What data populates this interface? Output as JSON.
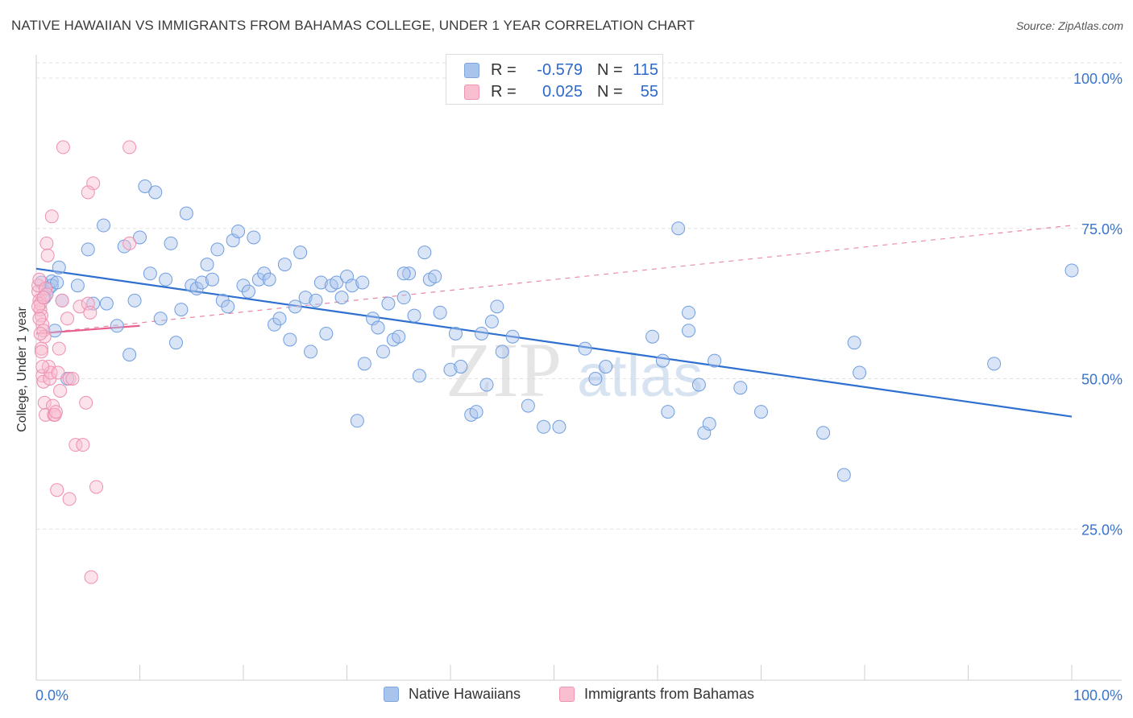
{
  "title": "NATIVE HAWAIIAN VS IMMIGRANTS FROM BAHAMAS COLLEGE, UNDER 1 YEAR CORRELATION CHART",
  "source": "Source: ZipAtlas.com",
  "y_axis_label": "College, Under 1 year",
  "watermark": {
    "zip": "ZIP",
    "atlas": "atlas"
  },
  "legend_stats": [
    {
      "r_label": "R =",
      "r_value": "-0.579",
      "n_label": "N =",
      "n_value": "115",
      "color": "#a9c4ec",
      "border": "#7ea6de"
    },
    {
      "r_label": "R =",
      "r_value": "0.025",
      "n_label": "N =",
      "n_value": "55",
      "color": "#f8bfd0",
      "border": "#ee95b1"
    }
  ],
  "bottom_legend": [
    {
      "label": "Native Hawaiians",
      "color": "#a9c4ec",
      "border": "#7ea6de"
    },
    {
      "label": "Immigrants from Bahamas",
      "color": "#f8bfd0",
      "border": "#ee95b1"
    }
  ],
  "chart_data": {
    "type": "scatter",
    "xlim": [
      0,
      100
    ],
    "ylim": [
      0,
      100
    ],
    "x_tick_labels": [
      "0.0%",
      "100.0%"
    ],
    "y_tick_labels": [
      {
        "value": 100,
        "label": "100.0%"
      },
      {
        "value": 75,
        "label": "75.0%"
      },
      {
        "value": 50,
        "label": "50.0%"
      },
      {
        "value": 25,
        "label": "25.0%"
      }
    ],
    "grid": true,
    "series": [
      {
        "name": "Native Hawaiians",
        "color": "#6f9ee0",
        "fill": "rgba(170,196,236,0.45)",
        "trend": {
          "x": [
            0,
            100
          ],
          "y": [
            68.3,
            43.7
          ],
          "style": "solid",
          "color": "#2e6fcf"
        },
        "points": [
          [
            0.8,
            63.5
          ],
          [
            1.2,
            65.0
          ],
          [
            1.5,
            66.2
          ],
          [
            1.8,
            58.0
          ],
          [
            2.2,
            68.5
          ],
          [
            2.5,
            63.0
          ],
          [
            4.0,
            65.5
          ],
          [
            5.0,
            71.5
          ],
          [
            5.5,
            62.5
          ],
          [
            6.5,
            75.5
          ],
          [
            6.8,
            62.5
          ],
          [
            7.8,
            58.8
          ],
          [
            8.5,
            72.0
          ],
          [
            9.0,
            54.0
          ],
          [
            9.5,
            63.0
          ],
          [
            10.0,
            73.5
          ],
          [
            10.5,
            82.0
          ],
          [
            11.0,
            67.5
          ],
          [
            11.5,
            81.0
          ],
          [
            12.0,
            60.0
          ],
          [
            12.5,
            66.5
          ],
          [
            13.0,
            72.5
          ],
          [
            13.5,
            56.0
          ],
          [
            14.0,
            61.5
          ],
          [
            14.5,
            77.5
          ],
          [
            15.0,
            65.5
          ],
          [
            15.5,
            65.0
          ],
          [
            16.0,
            66.0
          ],
          [
            16.5,
            69.0
          ],
          [
            17.0,
            66.5
          ],
          [
            17.5,
            71.5
          ],
          [
            18.0,
            63.0
          ],
          [
            18.5,
            62.0
          ],
          [
            19.0,
            73.0
          ],
          [
            19.5,
            74.5
          ],
          [
            20.0,
            65.5
          ],
          [
            20.5,
            64.5
          ],
          [
            21.0,
            73.5
          ],
          [
            21.5,
            66.5
          ],
          [
            22.0,
            67.5
          ],
          [
            22.5,
            66.5
          ],
          [
            23.0,
            59.0
          ],
          [
            23.5,
            60.0
          ],
          [
            24.0,
            69.0
          ],
          [
            24.5,
            56.5
          ],
          [
            25.0,
            62.0
          ],
          [
            25.5,
            71.0
          ],
          [
            26.0,
            63.5
          ],
          [
            26.5,
            54.5
          ],
          [
            27.0,
            63.0
          ],
          [
            27.5,
            66.0
          ],
          [
            28.0,
            57.5
          ],
          [
            28.5,
            65.5
          ],
          [
            29.0,
            66.0
          ],
          [
            29.5,
            63.5
          ],
          [
            30.0,
            67.0
          ],
          [
            30.5,
            65.5
          ],
          [
            31.0,
            43.0
          ],
          [
            31.5,
            66.0
          ],
          [
            31.7,
            52.5
          ],
          [
            32.5,
            60.0
          ],
          [
            33.0,
            58.5
          ],
          [
            33.5,
            54.5
          ],
          [
            34.0,
            62.5
          ],
          [
            34.5,
            56.5
          ],
          [
            35.0,
            57.0
          ],
          [
            35.5,
            63.5
          ],
          [
            36.0,
            67.5
          ],
          [
            36.5,
            60.5
          ],
          [
            37.0,
            50.5
          ],
          [
            37.5,
            71.0
          ],
          [
            38.0,
            66.5
          ],
          [
            38.5,
            67.0
          ],
          [
            39.0,
            61.0
          ],
          [
            40.0,
            51.5
          ],
          [
            40.5,
            57.5
          ],
          [
            41.0,
            52.0
          ],
          [
            42.0,
            44.0
          ],
          [
            42.5,
            44.5
          ],
          [
            43.0,
            57.5
          ],
          [
            43.5,
            49.0
          ],
          [
            44.0,
            59.5
          ],
          [
            44.5,
            62.0
          ],
          [
            45.0,
            54.5
          ],
          [
            46.0,
            57.0
          ],
          [
            47.5,
            45.5
          ],
          [
            49.0,
            42.0
          ],
          [
            50.5,
            42.0
          ],
          [
            53.0,
            55.0
          ],
          [
            54.0,
            50.0
          ],
          [
            55.0,
            52.0
          ],
          [
            59.5,
            57.0
          ],
          [
            60.5,
            53.0
          ],
          [
            61.0,
            44.5
          ],
          [
            62.0,
            75.0
          ],
          [
            63.0,
            58.0
          ],
          [
            63.0,
            61.0
          ],
          [
            64.0,
            49.0
          ],
          [
            64.5,
            41.0
          ],
          [
            65.0,
            42.5
          ],
          [
            65.5,
            53.0
          ],
          [
            68.0,
            48.5
          ],
          [
            70.0,
            44.5
          ],
          [
            76.0,
            41.0
          ],
          [
            78.0,
            34.0
          ],
          [
            79.0,
            56.0
          ],
          [
            79.5,
            51.0
          ],
          [
            92.5,
            52.5
          ],
          [
            100,
            68.0
          ],
          [
            0.5,
            66.0
          ],
          [
            1.0,
            64.0
          ],
          [
            3.0,
            50.0
          ],
          [
            1.5,
            65.5
          ],
          [
            2.0,
            66.0
          ],
          [
            35.5,
            67.5
          ]
        ]
      },
      {
        "name": "Immigrants from Bahamas",
        "color": "#ee8fb0",
        "fill": "rgba(248,191,208,0.45)",
        "trend_solid": {
          "x": [
            0,
            10
          ],
          "y": [
            57.5,
            58.8
          ],
          "color": "#e85f8f"
        },
        "trend": {
          "x": [
            0,
            100
          ],
          "y": [
            57.5,
            75.5
          ],
          "style": "dashed",
          "color": "#e88aa9"
        },
        "points": [
          [
            0.2,
            64.5
          ],
          [
            0.3,
            63.0
          ],
          [
            0.4,
            61.5
          ],
          [
            0.5,
            60.5
          ],
          [
            0.6,
            59.0
          ],
          [
            0.7,
            58.0
          ],
          [
            0.8,
            57.0
          ],
          [
            0.2,
            65.5
          ],
          [
            0.3,
            66.5
          ],
          [
            0.4,
            62.5
          ],
          [
            0.5,
            55.0
          ],
          [
            0.6,
            50.5
          ],
          [
            0.7,
            49.5
          ],
          [
            0.8,
            46.0
          ],
          [
            0.9,
            44.0
          ],
          [
            1.0,
            72.5
          ],
          [
            1.1,
            70.5
          ],
          [
            1.2,
            52.0
          ],
          [
            1.3,
            50.0
          ],
          [
            1.4,
            51.0
          ],
          [
            1.5,
            77.0
          ],
          [
            1.6,
            45.5
          ],
          [
            1.7,
            44.0
          ],
          [
            1.8,
            44.0
          ],
          [
            1.9,
            44.5
          ],
          [
            2.0,
            31.5
          ],
          [
            2.1,
            51.0
          ],
          [
            2.2,
            55.0
          ],
          [
            2.3,
            48.0
          ],
          [
            2.5,
            63.0
          ],
          [
            2.6,
            88.5
          ],
          [
            3.0,
            60.0
          ],
          [
            3.2,
            50.0
          ],
          [
            3.5,
            50.0
          ],
          [
            3.8,
            39.0
          ],
          [
            3.2,
            30.0
          ],
          [
            4.2,
            62.0
          ],
          [
            4.5,
            39.0
          ],
          [
            4.8,
            46.0
          ],
          [
            5.0,
            62.5
          ],
          [
            5.2,
            61.0
          ],
          [
            5.5,
            82.5
          ],
          [
            5.0,
            81.0
          ],
          [
            5.3,
            17.0
          ],
          [
            5.8,
            32.0
          ],
          [
            9.0,
            88.5
          ],
          [
            9.0,
            72.5
          ],
          [
            0.3,
            60.0
          ],
          [
            0.5,
            54.5
          ],
          [
            0.6,
            52.0
          ],
          [
            0.4,
            57.5
          ],
          [
            0.9,
            65.0
          ],
          [
            1.0,
            64.0
          ],
          [
            0.2,
            62.0
          ],
          [
            0.7,
            63.5
          ]
        ]
      }
    ]
  }
}
